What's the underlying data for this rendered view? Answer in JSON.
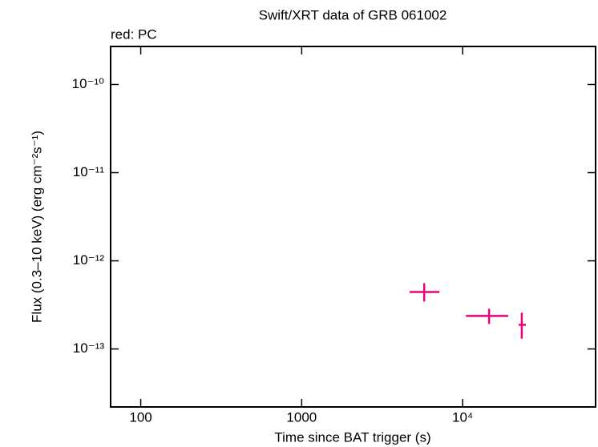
{
  "chart_data": {
    "type": "scatter",
    "title": "Swift/XRT data of GRB 061002",
    "subtitle": "red: PC",
    "x_label": "Time since BAT trigger (s)",
    "y_label": "Flux (0.3–10 keV) (erg cm⁻²s⁻¹)",
    "x_log": true,
    "y_log": true,
    "xlim": [
      65,
      67000
    ],
    "ylim": [
      2.2e-14,
      2.7e-10
    ],
    "xticks": [
      100,
      1000,
      {
        "value": 10000,
        "label": "10⁴"
      }
    ],
    "yticks": [
      {
        "value": 1e-10,
        "label": "10⁻¹⁰"
      },
      {
        "value": 1e-11,
        "label": "10⁻¹¹"
      },
      {
        "value": 1e-12,
        "label": "10⁻¹²"
      },
      {
        "value": 1e-13,
        "label": "10⁻¹³"
      }
    ],
    "color": "#ee0077",
    "x": [
      5770,
      14600,
      23300
    ],
    "x_low": [
      4680,
      10470,
      22300
    ],
    "x_high": [
      7180,
      19200,
      24700
    ],
    "y": [
      4.43e-13,
      2.37e-13,
      1.88e-13
    ],
    "y_low": [
      3.45e-13,
      1.92e-13,
      1.31e-13
    ],
    "y_high": [
      5.57e-13,
      2.86e-13,
      2.58e-13
    ]
  }
}
